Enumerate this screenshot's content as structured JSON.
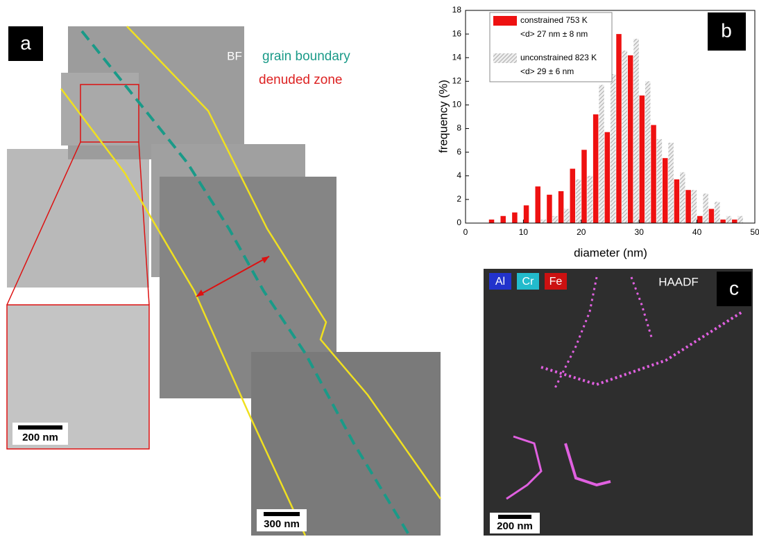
{
  "chart_data": {
    "type": "bar",
    "panel_label": "b",
    "x_label": "diameter (nm)",
    "y_label": "frequency (%)",
    "series": [
      {
        "name": "constrained 753 K",
        "note": "<d> 27 nm ± 8 nm",
        "color": "#ee1111",
        "hatch": false,
        "x": [
          4.5,
          6.5,
          8.5,
          10.5,
          12.5,
          14.5,
          16.5,
          18.5,
          20.5,
          22.5,
          24.5,
          26.5,
          28.5,
          30.5,
          32.5,
          34.5,
          36.5,
          38.5,
          40.5,
          42.5,
          44.5,
          46.5
        ],
        "values": [
          0.3,
          0.6,
          0.9,
          1.5,
          3.1,
          2.4,
          2.7,
          4.6,
          6.2,
          9.2,
          7.7,
          16.0,
          14.2,
          10.8,
          8.3,
          5.5,
          3.7,
          2.8,
          0.6,
          1.2,
          0.3,
          0.3
        ]
      },
      {
        "name": "unconstrained 823 K",
        "note": "<d> 29 ± 6 nm",
        "color": "#aaaaaa",
        "hatch": true,
        "x": [
          13.5,
          15.5,
          17.5,
          19.5,
          21.5,
          23.5,
          25.5,
          27.5,
          29.5,
          31.5,
          33.5,
          35.5,
          37.5,
          39.5,
          41.5,
          43.5,
          45.5,
          47.5
        ],
        "values": [
          0.3,
          0.6,
          1.2,
          3.7,
          4.0,
          11.7,
          12.6,
          14.6,
          15.6,
          12.0,
          7.1,
          6.8,
          4.3,
          2.8,
          2.5,
          1.8,
          0.6,
          0.6
        ]
      }
    ],
    "xlim": [
      0,
      50
    ],
    "xticks": [
      0,
      10,
      20,
      30,
      40,
      50
    ],
    "ylim": [
      0,
      18
    ],
    "yticks": [
      0,
      2,
      4,
      6,
      8,
      10,
      12,
      14,
      16,
      18
    ],
    "bar_width": 0.9
  },
  "panels": {
    "a": {
      "label": "a",
      "mode": "BF",
      "legend_boundary": "grain boundary",
      "legend_zone": "denuded zone",
      "inset_scale": "200 nm",
      "scale": "300 nm"
    },
    "c": {
      "label": "c",
      "mode": "HAADF",
      "elements": [
        "Al",
        "Cr",
        "Fe"
      ],
      "scale": "200 nm"
    }
  }
}
